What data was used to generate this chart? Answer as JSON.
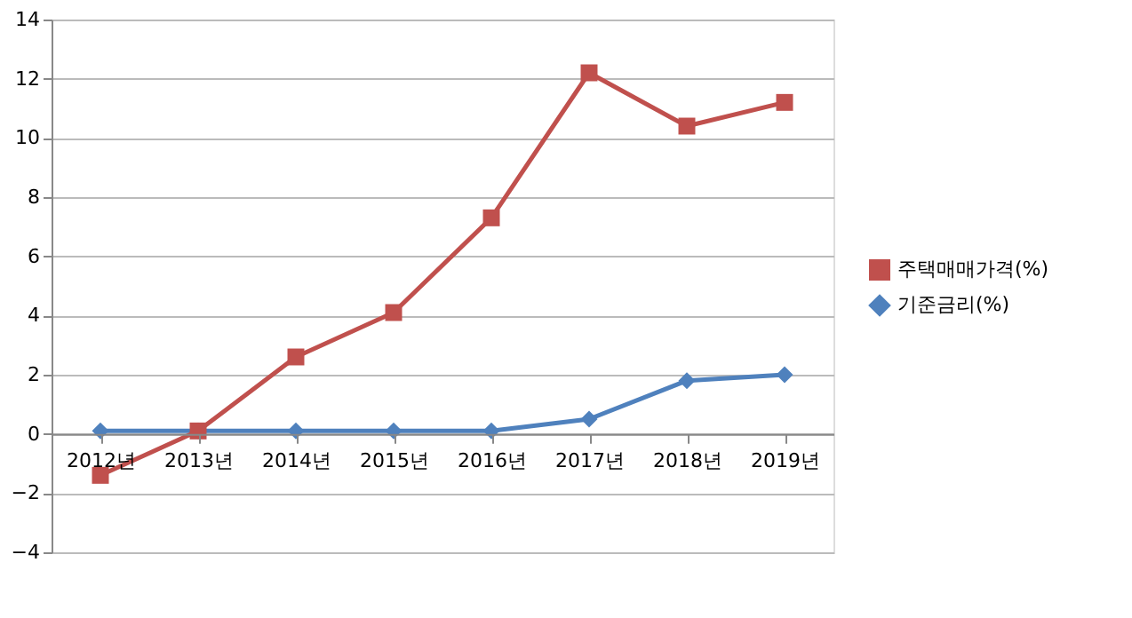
{
  "chart_data": {
    "type": "line",
    "categories": [
      "2012년",
      "2013년",
      "2014년",
      "2015년",
      "2016년",
      "2017년",
      "2018년",
      "2019년"
    ],
    "series": [
      {
        "name": "주택매매가격(%)",
        "color": "#c0504d",
        "marker": "square",
        "values": [
          -1.4,
          0.1,
          2.6,
          4.1,
          7.3,
          12.2,
          10.4,
          11.2
        ]
      },
      {
        "name": "기준금리(%)",
        "color": "#4f81bd",
        "marker": "diamond",
        "values": [
          0.1,
          0.1,
          0.1,
          0.1,
          0.1,
          0.5,
          1.8,
          2.0
        ]
      }
    ],
    "ylim": [
      -4,
      14
    ],
    "yticks": [
      -4,
      -2,
      0,
      2,
      4,
      6,
      8,
      10,
      12,
      14
    ],
    "grid": "y",
    "legend": "right"
  }
}
